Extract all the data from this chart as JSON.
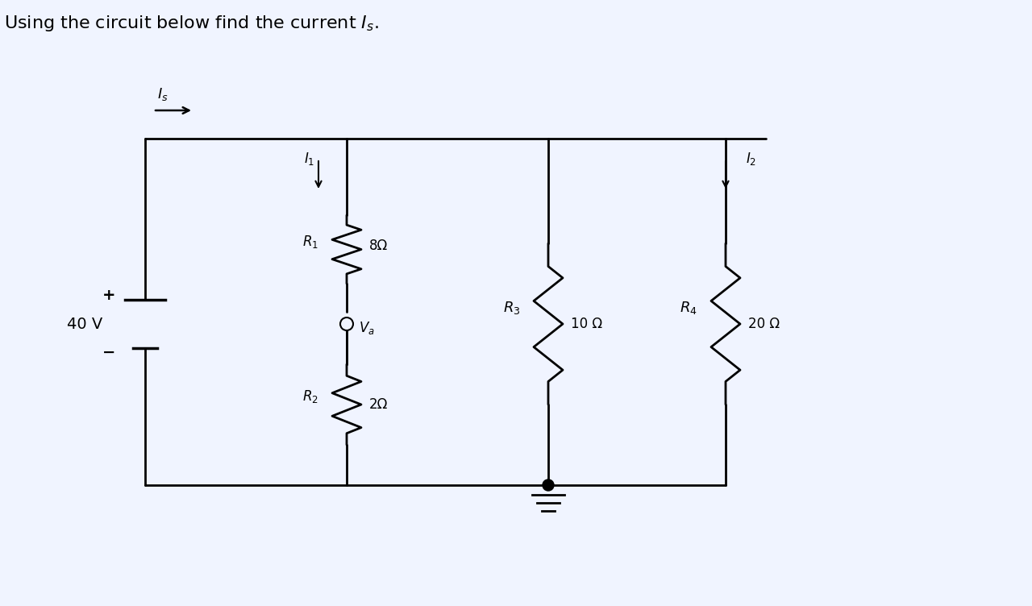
{
  "title": "Using the circuit below find the current $I_s$.",
  "title_fontsize": 16,
  "background_color": "#f0f4ff",
  "circuit_color": "#000000",
  "text_color": "#000000",
  "voltage_source": "40 V",
  "resistors": {
    "R1": "8Ω",
    "R2": "2Ω",
    "R3": "10Ω",
    "R4": "20Ω"
  },
  "labels": {
    "Is": "$I_s$",
    "I1": "$I_1$",
    "I2": "$I_2$",
    "Va": "$V_a$",
    "R1_label": "$R_1$",
    "R2_label": "$R_2$",
    "R3_label": "$R_3$",
    "R4_label": "$R_4$",
    "R1_val": "8Ω",
    "R2_val": "2Ω",
    "R3_val": "10 Ω",
    "R4_val": "20 Ω"
  }
}
